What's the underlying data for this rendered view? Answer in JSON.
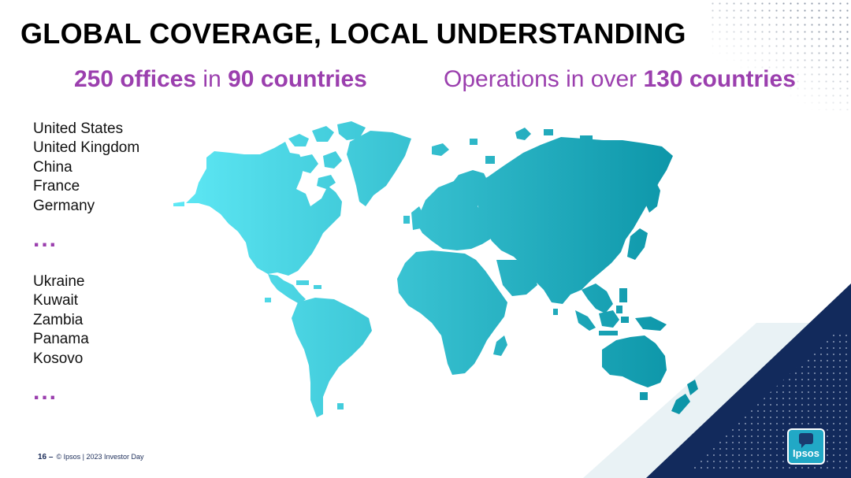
{
  "title": "GLOBAL COVERAGE, LOCAL UNDERSTANDING",
  "subtitle_left": {
    "part1": "250 offices",
    "part2": " in ",
    "part3": "90 countries"
  },
  "subtitle_right": {
    "part1": "Operations in over ",
    "part2": "130 countries"
  },
  "countries_a": [
    "United States",
    "United Kingdom",
    "China",
    "France",
    "Germany"
  ],
  "ellipsis": "...",
  "countries_b": [
    "Ukraine",
    "Kuwait",
    "Zambia",
    "Panama",
    "Kosovo"
  ],
  "footer": {
    "page": "16 –",
    "text": "© Ipsos | 2023 Investor Day"
  },
  "logo": {
    "text": "Ipsos"
  },
  "colors": {
    "accent": "#9b3fae",
    "map_light": "#5ee8f5",
    "map_dark": "#0a93a6",
    "navy": "#122a5c",
    "pale": "#e9f2f5"
  },
  "icons": [
    "world-map-graphic",
    "dot-pattern",
    "ipsos-logo"
  ]
}
